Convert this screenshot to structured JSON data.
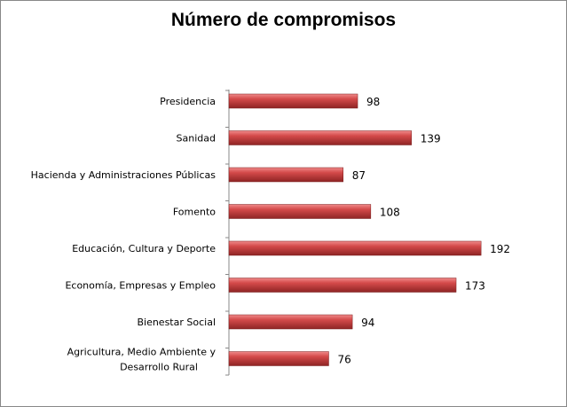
{
  "chart_data": {
    "type": "bar",
    "orientation": "horizontal",
    "title": "Número de compromisos",
    "categories": [
      "Presidencia",
      "Sanidad",
      "Hacienda y Administraciones Públicas",
      "Fomento",
      "Educación, Cultura y Deporte",
      "Economía, Empresas y Empleo",
      "Bienestar Social",
      "Agricultura, Medio Ambiente y Desarrollo Rural"
    ],
    "values": [
      98,
      139,
      87,
      108,
      192,
      173,
      94,
      76
    ],
    "data_labels": [
      "98",
      "139",
      "87",
      "108",
      "192",
      "173",
      "94",
      "76"
    ],
    "xlabel": "",
    "ylabel": "",
    "xlim": [
      0,
      200
    ],
    "grid": false,
    "bar_color": "#c0393b"
  }
}
